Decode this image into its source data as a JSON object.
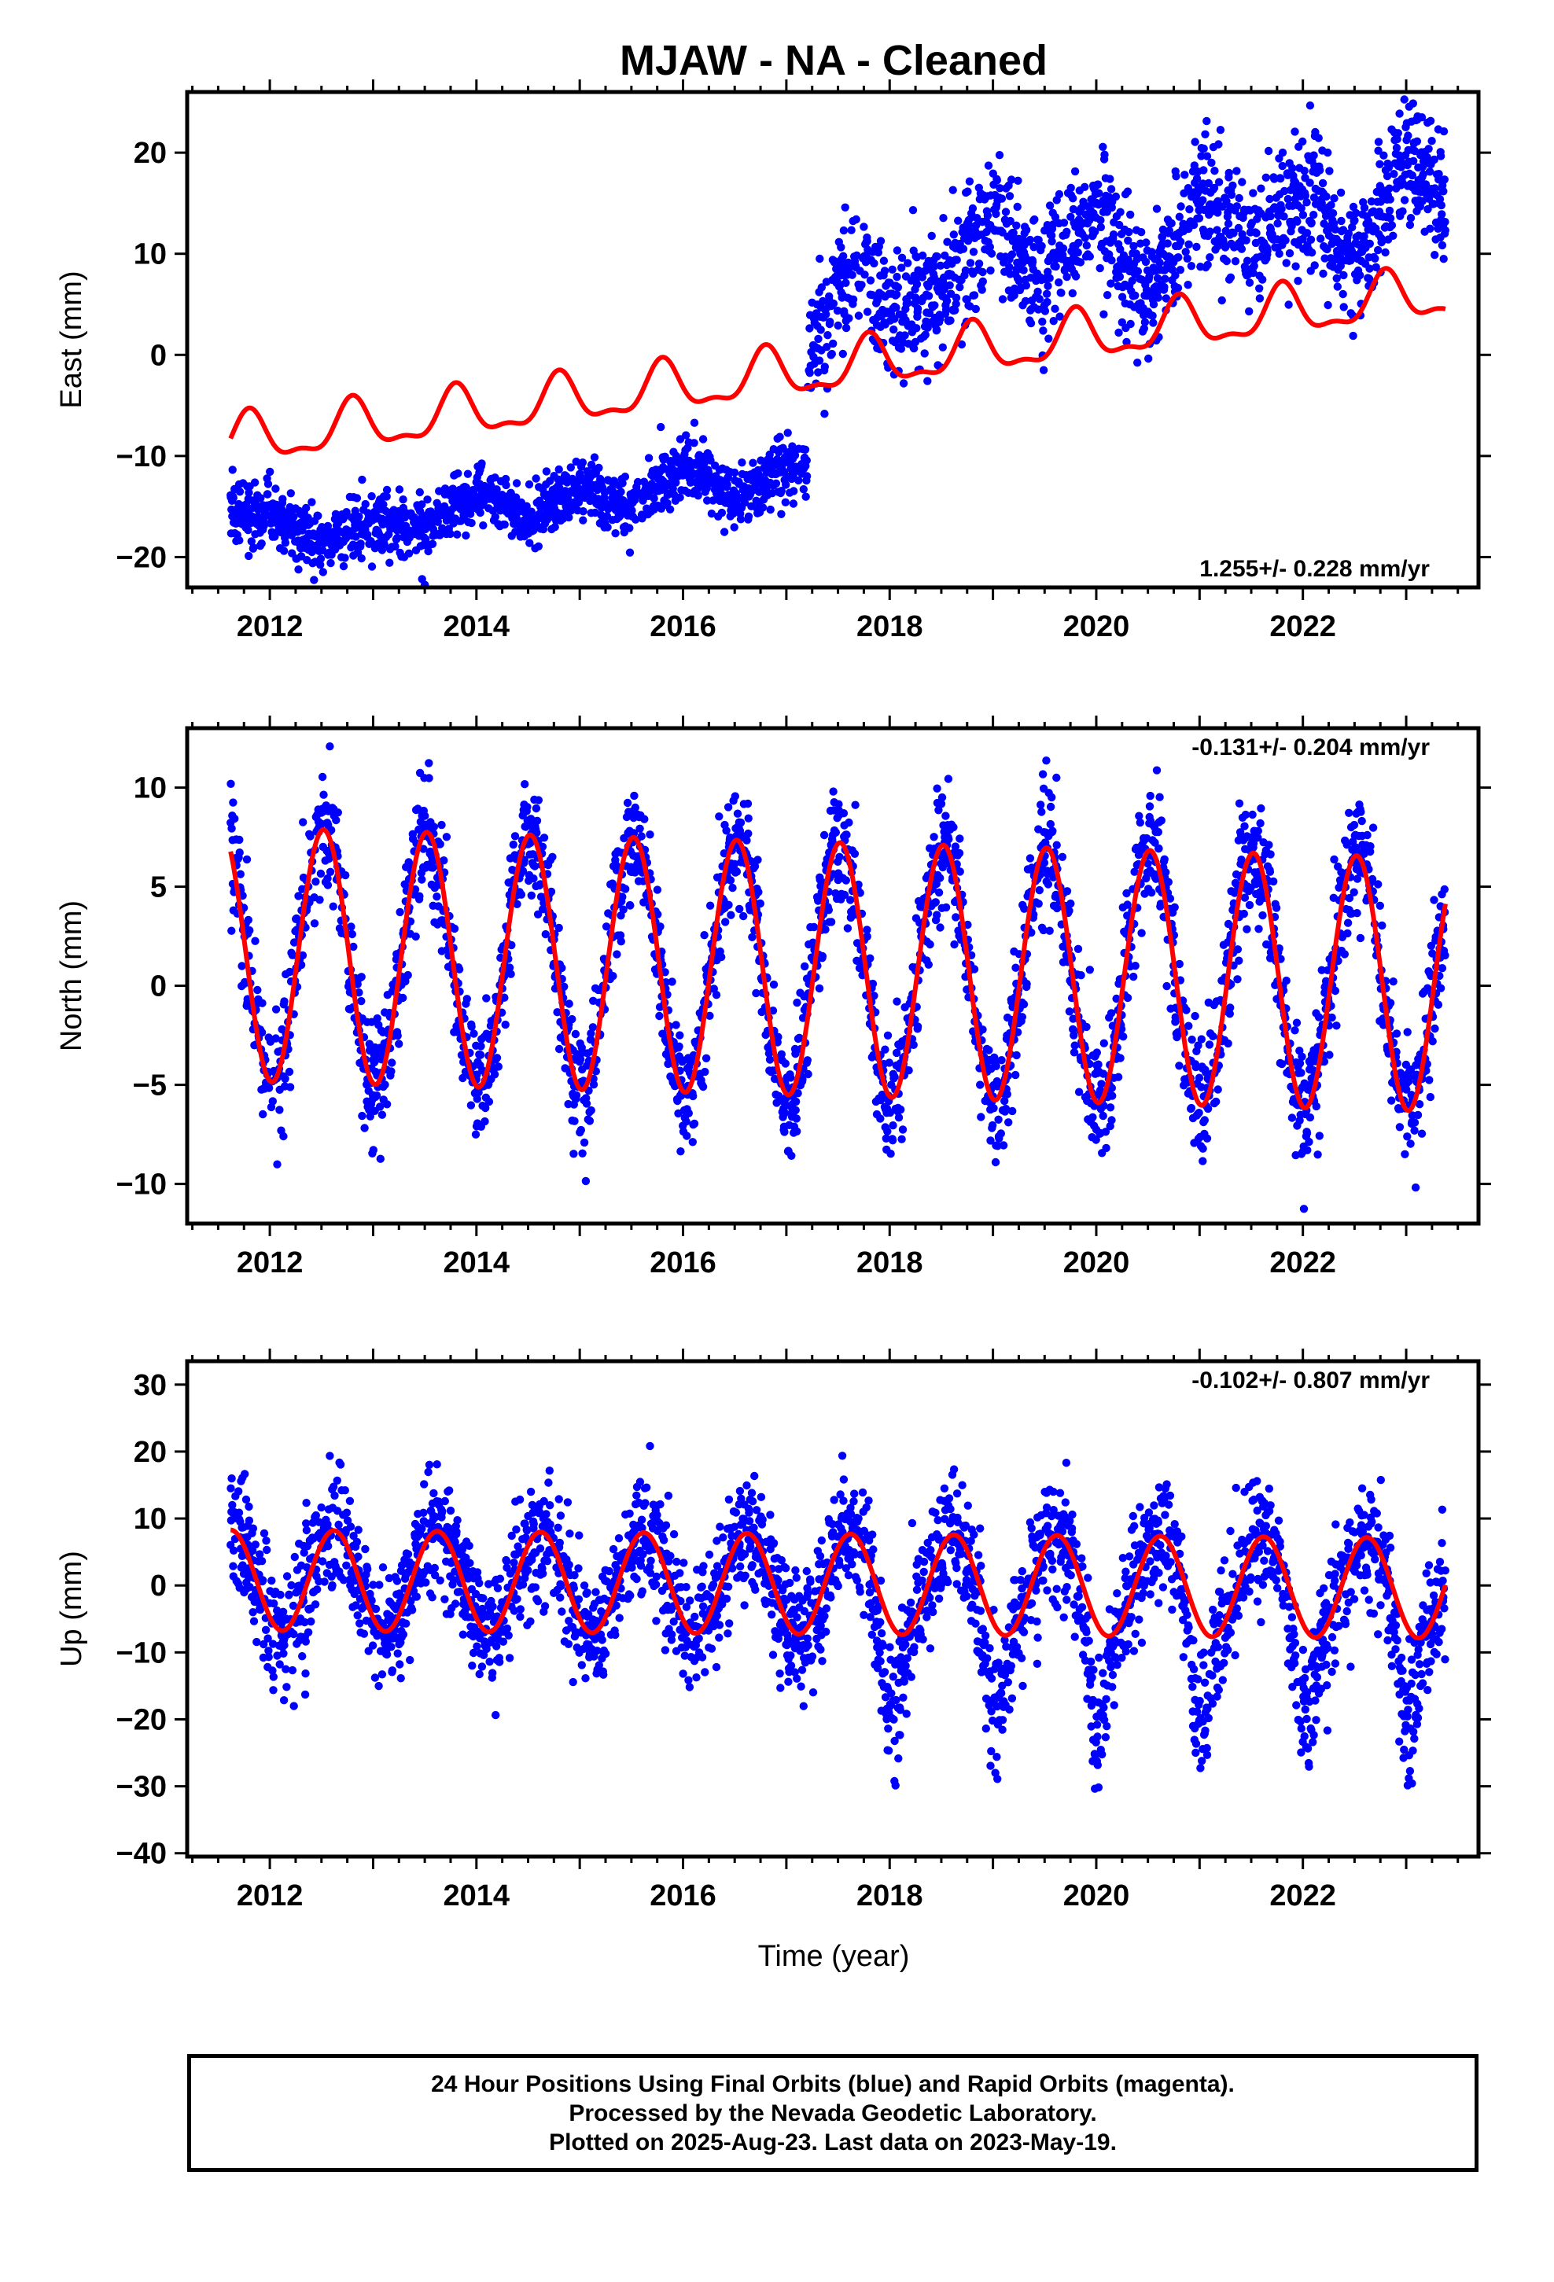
{
  "title": "MJAW  - NA - Cleaned",
  "xlabel": "Time (year)",
  "footer": {
    "line1": "24 Hour Positions Using Final Orbits (blue) and Rapid Orbits (magenta).",
    "line2": "Processed by the Nevada Geodetic Laboratory.",
    "line3": "Plotted on 2025-Aug-23. Last data on 2023-May-19."
  },
  "colors": {
    "observations": "#0000ff",
    "model": "#ff0000",
    "axes": "#000000"
  },
  "chart_data": [
    {
      "type": "scatter",
      "ylabel": "East (mm)",
      "rate_label": "1.255+/- 0.228 mm/yr",
      "rate_position": "bottom-right",
      "xlim": [
        2011.2,
        2023.7
      ],
      "ylim": [
        -23,
        26
      ],
      "xticks": [
        2012,
        2014,
        2016,
        2018,
        2020,
        2022
      ],
      "yticks": [
        -20,
        -10,
        0,
        10,
        20
      ],
      "grid": false,
      "observations_summary": [
        {
          "period": [
            2011.6,
            2017.2
          ],
          "center": [
            [
              2011.6,
              -15.5
            ],
            [
              2012.0,
              -16
            ],
            [
              2012.5,
              -18.5
            ],
            [
              2013.0,
              -16.5
            ],
            [
              2013.5,
              -17
            ],
            [
              2014.0,
              -13.5
            ],
            [
              2014.5,
              -16
            ],
            [
              2015.0,
              -13
            ],
            [
              2015.5,
              -15
            ],
            [
              2016.0,
              -11
            ],
            [
              2016.5,
              -14
            ],
            [
              2017.0,
              -11
            ],
            [
              2017.2,
              -12
            ]
          ],
          "spread": 1.5
        },
        {
          "period": [
            2017.2,
            2023.4
          ],
          "center": [
            [
              2017.2,
              1
            ],
            [
              2017.7,
              9
            ],
            [
              2018.0,
              5
            ],
            [
              2018.5,
              6
            ],
            [
              2019.0,
              14
            ],
            [
              2019.5,
              7
            ],
            [
              2020.0,
              14
            ],
            [
              2020.5,
              6
            ],
            [
              2021.0,
              15
            ],
            [
              2021.5,
              11
            ],
            [
              2022.0,
              16
            ],
            [
              2022.5,
              9
            ],
            [
              2023.0,
              20
            ],
            [
              2023.4,
              14
            ]
          ],
          "spread": 3.2
        }
      ],
      "model": {
        "offset_at_2011": -8.7,
        "rate_mm_per_yr": 1.255,
        "jump_at": 2017.2,
        "jump_mm": 0.0,
        "annual_amplitude_mm": 2.3,
        "annual_peak_fraction": 0.8,
        "semiannual_amplitude_mm": 0.9
      }
    },
    {
      "type": "scatter",
      "ylabel": "North (mm)",
      "rate_label": "-0.131+/- 0.204 mm/yr",
      "rate_position": "top-right",
      "xlim": [
        2011.2,
        2023.7
      ],
      "ylim": [
        -12,
        13
      ],
      "xticks": [
        2012,
        2014,
        2016,
        2018,
        2020,
        2022
      ],
      "yticks": [
        -10,
        -5,
        0,
        5,
        10
      ],
      "grid": false,
      "observations_summary": {
        "period": [
          2011.6,
          2023.4
        ],
        "follows_model": true,
        "spread": 1.6
      },
      "model": {
        "offset_at_2011": 1.6,
        "rate_mm_per_yr": -0.131,
        "annual_amplitude_mm": 6.4,
        "annual_peak_fraction": 0.52,
        "semiannual_amplitude_mm": 0.0
      }
    },
    {
      "type": "scatter",
      "ylabel": "Up (mm)",
      "rate_label": "-0.102+/- 0.807 mm/yr",
      "rate_position": "top-right",
      "xlim": [
        2011.2,
        2023.7
      ],
      "ylim": [
        -40.5,
        33.5
      ],
      "xticks": [
        2012,
        2014,
        2016,
        2018,
        2020,
        2022
      ],
      "yticks": [
        -40,
        -30,
        -20,
        -10,
        0,
        10,
        20,
        30
      ],
      "grid": false,
      "observations_summary": {
        "period": [
          2011.6,
          2023.4
        ],
        "follows_model": true,
        "spread": 4.5,
        "winter_dips_from": 2017.8,
        "winter_dip_mm": -18
      },
      "model": {
        "offset_at_2011": 0.8,
        "rate_mm_per_yr": -0.102,
        "annual_amplitude_mm": 7.5,
        "annual_peak_fraction": 0.62,
        "semiannual_amplitude_mm": 0.0
      }
    }
  ]
}
